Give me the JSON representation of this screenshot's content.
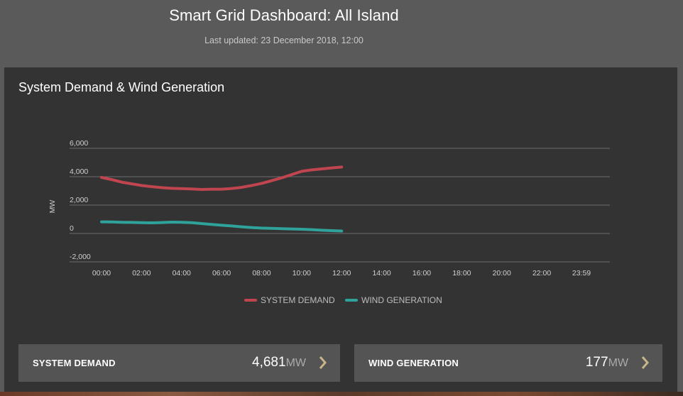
{
  "header": {
    "title": "Smart Grid Dashboard: All Island",
    "last_updated": "Last updated: 23 December 2018, 12:00"
  },
  "panel": {
    "title": "System Demand & Wind Generation"
  },
  "chart_data": {
    "type": "line",
    "title": "",
    "ylabel": "MW",
    "xlabel": "",
    "ylim": [
      -2000,
      6000
    ],
    "y_ticks": [
      "6,000",
      "4,000",
      "2,000",
      "0",
      "-2,000"
    ],
    "y_tick_values": [
      6000,
      4000,
      2000,
      0,
      -2000
    ],
    "x_ticks": [
      "00:00",
      "02:00",
      "04:00",
      "06:00",
      "08:00",
      "10:00",
      "12:00",
      "14:00",
      "16:00",
      "18:00",
      "20:00",
      "22:00",
      "23:59"
    ],
    "x_tick_hours": [
      0,
      2,
      4,
      6,
      8,
      10,
      12,
      14,
      16,
      18,
      20,
      22,
      23.983
    ],
    "grid": true,
    "legend_position": "bottom-center",
    "series": [
      {
        "name": "SYSTEM DEMAND",
        "color": "#c0454f",
        "x": [
          0,
          0.5,
          1,
          1.5,
          2,
          2.5,
          3,
          3.5,
          4,
          4.5,
          5,
          5.5,
          6,
          6.5,
          7,
          7.5,
          8,
          8.5,
          9,
          9.5,
          10,
          10.5,
          11,
          11.5,
          12
        ],
        "values": [
          3950,
          3800,
          3620,
          3500,
          3380,
          3300,
          3230,
          3180,
          3160,
          3140,
          3100,
          3120,
          3120,
          3170,
          3250,
          3380,
          3530,
          3720,
          3920,
          4150,
          4380,
          4480,
          4550,
          4620,
          4681
        ]
      },
      {
        "name": "WIND GENERATION",
        "color": "#2fa39b",
        "x": [
          0,
          0.5,
          1,
          1.5,
          2,
          2.5,
          3,
          3.5,
          4,
          4.5,
          5,
          5.5,
          6,
          6.5,
          7,
          7.5,
          8,
          8.5,
          9,
          9.5,
          10,
          10.5,
          11,
          11.5,
          12
        ],
        "values": [
          820,
          810,
          790,
          780,
          760,
          750,
          770,
          800,
          790,
          760,
          700,
          640,
          580,
          530,
          470,
          420,
          380,
          360,
          340,
          320,
          300,
          270,
          230,
          200,
          177
        ]
      }
    ]
  },
  "cards": [
    {
      "label": "SYSTEM DEMAND",
      "value": "4,681",
      "unit": "MW"
    },
    {
      "label": "WIND GENERATION",
      "value": "177",
      "unit": "MW"
    }
  ],
  "colors": {
    "arrow": "#c8b48a",
    "panel_bg": "#333333",
    "card_bg": "#545454",
    "page_bg": "#5a5a5a",
    "grid": "#6e6e6e"
  },
  "icons": {
    "card_arrow": "chevron-right-icon"
  }
}
